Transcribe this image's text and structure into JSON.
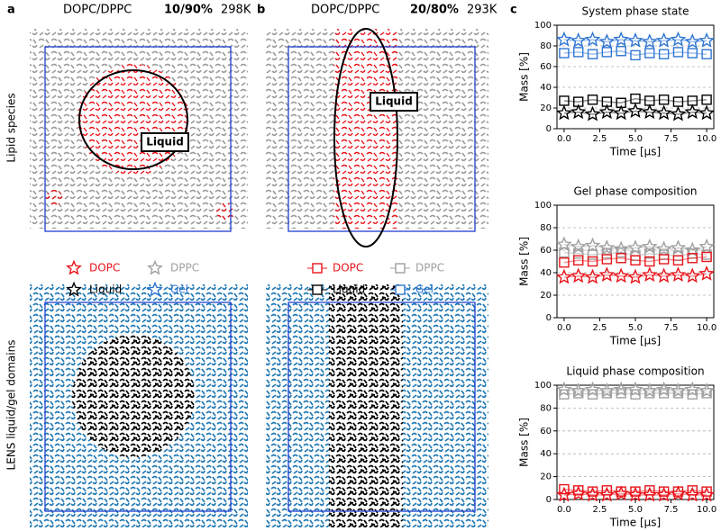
{
  "panels": [
    {
      "letter": "a",
      "mixture": "DOPC/DPPC",
      "ratio": "10/90%",
      "temperature": "298K",
      "region_label": "Liquid",
      "legend": [
        {
          "name": "DOPC",
          "color": "#e8141b",
          "marker": "star"
        },
        {
          "name": "DPPC",
          "color": "#a0a0a0",
          "marker": "star"
        },
        {
          "name": "Liquid",
          "color": "#000000",
          "marker": "star"
        },
        {
          "name": "Gel",
          "color": "#2f76d2",
          "marker": "star"
        }
      ]
    },
    {
      "letter": "b",
      "mixture": "DOPC/DPPC",
      "ratio": "20/80%",
      "temperature": "293K",
      "region_label": "Liquid",
      "legend": [
        {
          "name": "DOPC",
          "color": "#e8141b",
          "marker": "square"
        },
        {
          "name": "DPPC",
          "color": "#a0a0a0",
          "marker": "square"
        },
        {
          "name": "Liquid",
          "color": "#000000",
          "marker": "square"
        },
        {
          "name": "Gel",
          "color": "#2f76d2",
          "marker": "square"
        }
      ]
    },
    {
      "letter": "c"
    }
  ],
  "row_labels": [
    "Lipid species",
    "LENS liquid/gel domains"
  ],
  "chart_data": [
    {
      "type": "line",
      "title": "System phase state",
      "x_label": "Time [µs]",
      "y_label": "Mass [%]",
      "x": [
        0,
        1,
        2,
        3,
        4,
        5,
        6,
        7,
        8,
        9,
        10
      ],
      "xlim": [
        -0.5,
        10.5
      ],
      "ylim": [
        0,
        100
      ],
      "xticks": [
        {
          "value": 0,
          "label": "0.0"
        },
        2.5,
        {
          "value": 5,
          "label": "5.0"
        },
        7.5,
        {
          "value": 10,
          "label": "10.0"
        }
      ],
      "yticks": [
        0,
        20,
        40,
        60,
        80,
        100
      ],
      "grid": true,
      "series": [
        {
          "color": "#2f76d2",
          "marker": "star",
          "values": [
            86,
            85,
            86,
            84,
            86,
            85,
            84,
            85,
            86,
            84,
            85
          ]
        },
        {
          "color": "#2f76d2",
          "marker": "square",
          "values": [
            73,
            74,
            72,
            74,
            75,
            71,
            73,
            72,
            74,
            73,
            72
          ]
        },
        {
          "color": "#000000",
          "marker": "square",
          "values": [
            27,
            26,
            28,
            26,
            25,
            29,
            27,
            28,
            26,
            27,
            28
          ]
        },
        {
          "color": "#000000",
          "marker": "star",
          "values": [
            15,
            16,
            14,
            16,
            15,
            17,
            16,
            15,
            14,
            16,
            15
          ]
        }
      ]
    },
    {
      "type": "line",
      "title": "Gel phase composition",
      "x_label": "Time [µs]",
      "y_label": "Mass [%]",
      "x": [
        0,
        1,
        2,
        3,
        4,
        5,
        6,
        7,
        8,
        9,
        10
      ],
      "xlim": [
        -0.5,
        10.5
      ],
      "ylim": [
        0,
        100
      ],
      "xticks": [
        {
          "value": 0,
          "label": "0.0"
        },
        2.5,
        {
          "value": 5,
          "label": "5.0"
        },
        7.5,
        {
          "value": 10,
          "label": "10.0"
        }
      ],
      "yticks": [
        0,
        20,
        40,
        60,
        80,
        100
      ],
      "grid": true,
      "series": [
        {
          "color": "#a0a0a0",
          "marker": "star",
          "values": [
            65,
            63,
            64,
            62,
            61,
            62,
            63,
            61,
            62,
            60,
            63
          ]
        },
        {
          "color": "#a0a0a0",
          "marker": "square",
          "values": [
            58,
            57,
            56,
            57,
            58,
            55,
            57,
            56,
            55,
            57,
            56
          ]
        },
        {
          "color": "#e8141b",
          "marker": "square",
          "values": [
            49,
            51,
            50,
            52,
            53,
            51,
            50,
            52,
            51,
            53,
            54
          ]
        },
        {
          "color": "#e8141b",
          "marker": "star",
          "values": [
            36,
            37,
            36,
            38,
            37,
            36,
            38,
            37,
            38,
            37,
            39
          ]
        }
      ]
    },
    {
      "type": "line",
      "title": "Liquid phase composition",
      "x_label": "Time [µs]",
      "y_label": "Mass [%]",
      "x": [
        0,
        1,
        2,
        3,
        4,
        5,
        6,
        7,
        8,
        9,
        10
      ],
      "xlim": [
        -0.5,
        10.5
      ],
      "ylim": [
        0,
        100
      ],
      "xticks": [
        {
          "value": 0,
          "label": "0.0"
        },
        2.5,
        {
          "value": 5,
          "label": "5.0"
        },
        7.5,
        {
          "value": 10,
          "label": "10.0"
        }
      ],
      "yticks": [
        0,
        20,
        40,
        60,
        80,
        100
      ],
      "grid": true,
      "series": [
        {
          "color": "#a0a0a0",
          "marker": "star",
          "values": [
            96,
            95,
            96,
            95,
            96,
            96,
            95,
            96,
            95,
            96,
            95
          ]
        },
        {
          "color": "#a0a0a0",
          "marker": "square",
          "values": [
            92,
            93,
            92,
            93,
            93,
            92,
            93,
            93,
            93,
            92,
            93
          ]
        },
        {
          "color": "#e8141b",
          "marker": "square",
          "values": [
            9,
            8,
            7,
            8,
            7,
            7,
            8,
            7,
            7,
            8,
            7
          ]
        },
        {
          "color": "#e8141b",
          "marker": "star",
          "values": [
            4,
            5,
            4,
            4,
            5,
            4,
            4,
            4,
            5,
            4,
            4
          ]
        }
      ]
    }
  ]
}
